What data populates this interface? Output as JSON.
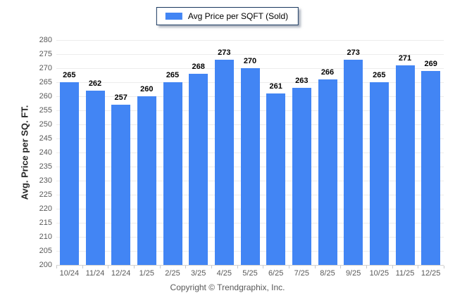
{
  "page": {
    "footer": "Copyright © Trendgraphix, Inc."
  },
  "legend": {
    "label": "Avg Price per SQFT (Sold)",
    "swatch_color": "#4285f4"
  },
  "chart_data": {
    "type": "bar",
    "title": "",
    "series_name": "Avg Price per SQFT (Sold)",
    "categories": [
      "10/24",
      "11/24",
      "12/24",
      "1/25",
      "2/25",
      "3/25",
      "4/25",
      "5/25",
      "6/25",
      "7/25",
      "8/25",
      "9/25",
      "10/25",
      "11/25",
      "12/25"
    ],
    "values": [
      265,
      262,
      257,
      260,
      265,
      268,
      273,
      270,
      261,
      263,
      266,
      273,
      265,
      271,
      269
    ],
    "xlabel": "",
    "ylabel": "Avg. Price per SQ. FT.",
    "ylim": [
      200,
      280
    ],
    "ytick_step": 5,
    "grid": true,
    "legend_position": "top-center",
    "value_labels": true
  },
  "colors": {
    "bar": "#4285f4",
    "grid": "#ececec",
    "axis_line": "#d2d2d2",
    "tick": "#c9c9c9",
    "tick_label": "#595959",
    "value_label": "#000000",
    "legend_border": "#17375e",
    "background": "#ffffff"
  }
}
